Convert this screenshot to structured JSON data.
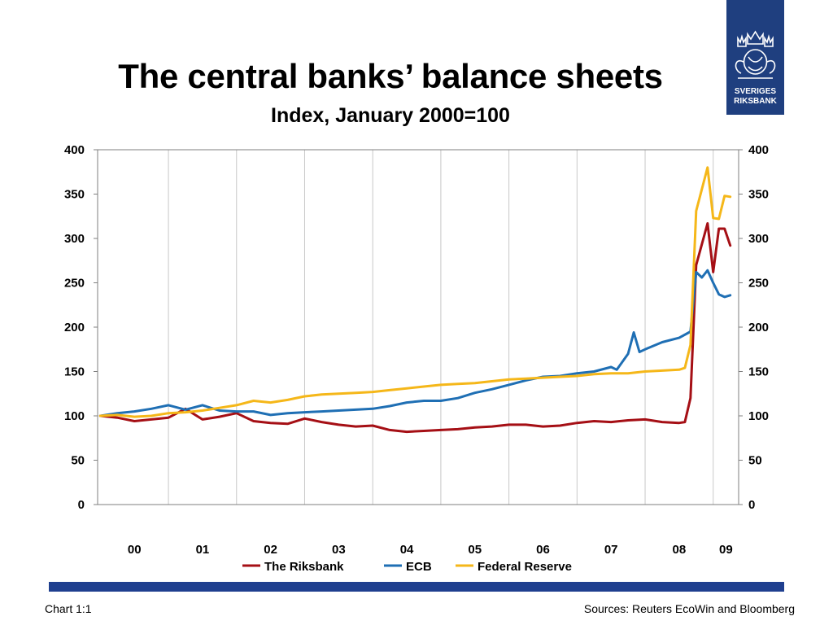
{
  "header": {
    "title": "The central banks’ balance sheets",
    "subtitle": "Index, January 2000=100"
  },
  "logo": {
    "text": "SVERIGES\nRIKSBANK",
    "color": "#1f3f7f"
  },
  "footer": {
    "left": "Chart 1:1",
    "right": "Sources: Reuters EcoWin and Bloomberg",
    "bar_color": "#1f3f8f"
  },
  "chart_data": {
    "type": "line",
    "title": "The central banks’ balance sheets",
    "subtitle": "Index, January 2000=100",
    "xlabel": "",
    "ylabel": "",
    "ylim": [
      0,
      400
    ],
    "yticks": [
      0,
      50,
      100,
      150,
      200,
      250,
      300,
      350,
      400
    ],
    "secondary_y_axis": true,
    "xticks": [
      "00",
      "01",
      "02",
      "03",
      "04",
      "05",
      "06",
      "07",
      "08",
      "09"
    ],
    "x_start": "2000-01",
    "x_end": "2009-05",
    "grid": "vertical",
    "legend": "bottom",
    "series": [
      {
        "name": "The Riksbank",
        "color": "#a50f15",
        "points": [
          [
            "2000-01",
            100
          ],
          [
            "2000-04",
            98
          ],
          [
            "2000-07",
            94
          ],
          [
            "2000-10",
            96
          ],
          [
            "2001-01",
            98
          ],
          [
            "2001-04",
            108
          ],
          [
            "2001-07",
            96
          ],
          [
            "2001-10",
            99
          ],
          [
            "2002-01",
            103
          ],
          [
            "2002-04",
            94
          ],
          [
            "2002-07",
            92
          ],
          [
            "2002-10",
            91
          ],
          [
            "2003-01",
            97
          ],
          [
            "2003-04",
            93
          ],
          [
            "2003-07",
            90
          ],
          [
            "2003-10",
            88
          ],
          [
            "2004-01",
            89
          ],
          [
            "2004-04",
            84
          ],
          [
            "2004-07",
            82
          ],
          [
            "2004-10",
            83
          ],
          [
            "2005-01",
            84
          ],
          [
            "2005-04",
            85
          ],
          [
            "2005-07",
            87
          ],
          [
            "2005-10",
            88
          ],
          [
            "2006-01",
            90
          ],
          [
            "2006-04",
            90
          ],
          [
            "2006-07",
            88
          ],
          [
            "2006-10",
            89
          ],
          [
            "2007-01",
            92
          ],
          [
            "2007-04",
            94
          ],
          [
            "2007-07",
            93
          ],
          [
            "2007-10",
            95
          ],
          [
            "2008-01",
            96
          ],
          [
            "2008-04",
            93
          ],
          [
            "2008-07",
            92
          ],
          [
            "2008-08",
            93
          ],
          [
            "2008-09",
            120
          ],
          [
            "2008-10",
            270
          ],
          [
            "2008-12",
            317
          ],
          [
            "2009-01",
            262
          ],
          [
            "2009-02",
            311
          ],
          [
            "2009-03",
            311
          ],
          [
            "2009-04",
            292
          ]
        ]
      },
      {
        "name": "ECB",
        "color": "#1f6fb4",
        "points": [
          [
            "2000-01",
            100
          ],
          [
            "2000-04",
            103
          ],
          [
            "2000-07",
            105
          ],
          [
            "2000-10",
            108
          ],
          [
            "2001-01",
            112
          ],
          [
            "2001-04",
            107
          ],
          [
            "2001-07",
            112
          ],
          [
            "2001-10",
            106
          ],
          [
            "2002-01",
            105
          ],
          [
            "2002-04",
            105
          ],
          [
            "2002-07",
            101
          ],
          [
            "2002-10",
            103
          ],
          [
            "2003-01",
            104
          ],
          [
            "2003-04",
            105
          ],
          [
            "2003-07",
            106
          ],
          [
            "2003-10",
            107
          ],
          [
            "2004-01",
            108
          ],
          [
            "2004-04",
            111
          ],
          [
            "2004-07",
            115
          ],
          [
            "2004-10",
            117
          ],
          [
            "2005-01",
            117
          ],
          [
            "2005-04",
            120
          ],
          [
            "2005-07",
            126
          ],
          [
            "2005-10",
            130
          ],
          [
            "2006-01",
            135
          ],
          [
            "2006-04",
            140
          ],
          [
            "2006-07",
            144
          ],
          [
            "2006-10",
            145
          ],
          [
            "2007-01",
            148
          ],
          [
            "2007-04",
            150
          ],
          [
            "2007-07",
            155
          ],
          [
            "2007-08",
            152
          ],
          [
            "2007-10",
            170
          ],
          [
            "2007-11",
            194
          ],
          [
            "2007-12",
            172
          ],
          [
            "2008-01",
            175
          ],
          [
            "2008-04",
            183
          ],
          [
            "2008-07",
            188
          ],
          [
            "2008-09",
            195
          ],
          [
            "2008-10",
            262
          ],
          [
            "2008-11",
            256
          ],
          [
            "2008-12",
            264
          ],
          [
            "2009-01",
            250
          ],
          [
            "2009-02",
            237
          ],
          [
            "2009-03",
            234
          ],
          [
            "2009-04",
            236
          ]
        ]
      },
      {
        "name": "Federal Reserve",
        "color": "#f5b719",
        "points": [
          [
            "2000-01",
            100
          ],
          [
            "2000-04",
            101
          ],
          [
            "2000-07",
            99
          ],
          [
            "2000-10",
            100
          ],
          [
            "2001-01",
            103
          ],
          [
            "2001-04",
            104
          ],
          [
            "2001-07",
            106
          ],
          [
            "2001-10",
            109
          ],
          [
            "2002-01",
            112
          ],
          [
            "2002-04",
            117
          ],
          [
            "2002-07",
            115
          ],
          [
            "2002-10",
            118
          ],
          [
            "2003-01",
            122
          ],
          [
            "2003-04",
            124
          ],
          [
            "2003-07",
            125
          ],
          [
            "2003-10",
            126
          ],
          [
            "2004-01",
            127
          ],
          [
            "2004-04",
            129
          ],
          [
            "2004-07",
            131
          ],
          [
            "2004-10",
            133
          ],
          [
            "2005-01",
            135
          ],
          [
            "2005-04",
            136
          ],
          [
            "2005-07",
            137
          ],
          [
            "2005-10",
            139
          ],
          [
            "2006-01",
            141
          ],
          [
            "2006-04",
            142
          ],
          [
            "2006-07",
            143
          ],
          [
            "2006-10",
            144
          ],
          [
            "2007-01",
            145
          ],
          [
            "2007-04",
            147
          ],
          [
            "2007-07",
            148
          ],
          [
            "2007-10",
            148
          ],
          [
            "2008-01",
            150
          ],
          [
            "2008-04",
            151
          ],
          [
            "2008-07",
            152
          ],
          [
            "2008-08",
            154
          ],
          [
            "2008-09",
            180
          ],
          [
            "2008-10",
            331
          ],
          [
            "2008-12",
            380
          ],
          [
            "2009-01",
            323
          ],
          [
            "2009-02",
            322
          ],
          [
            "2009-03",
            348
          ],
          [
            "2009-04",
            347
          ]
        ]
      }
    ]
  }
}
